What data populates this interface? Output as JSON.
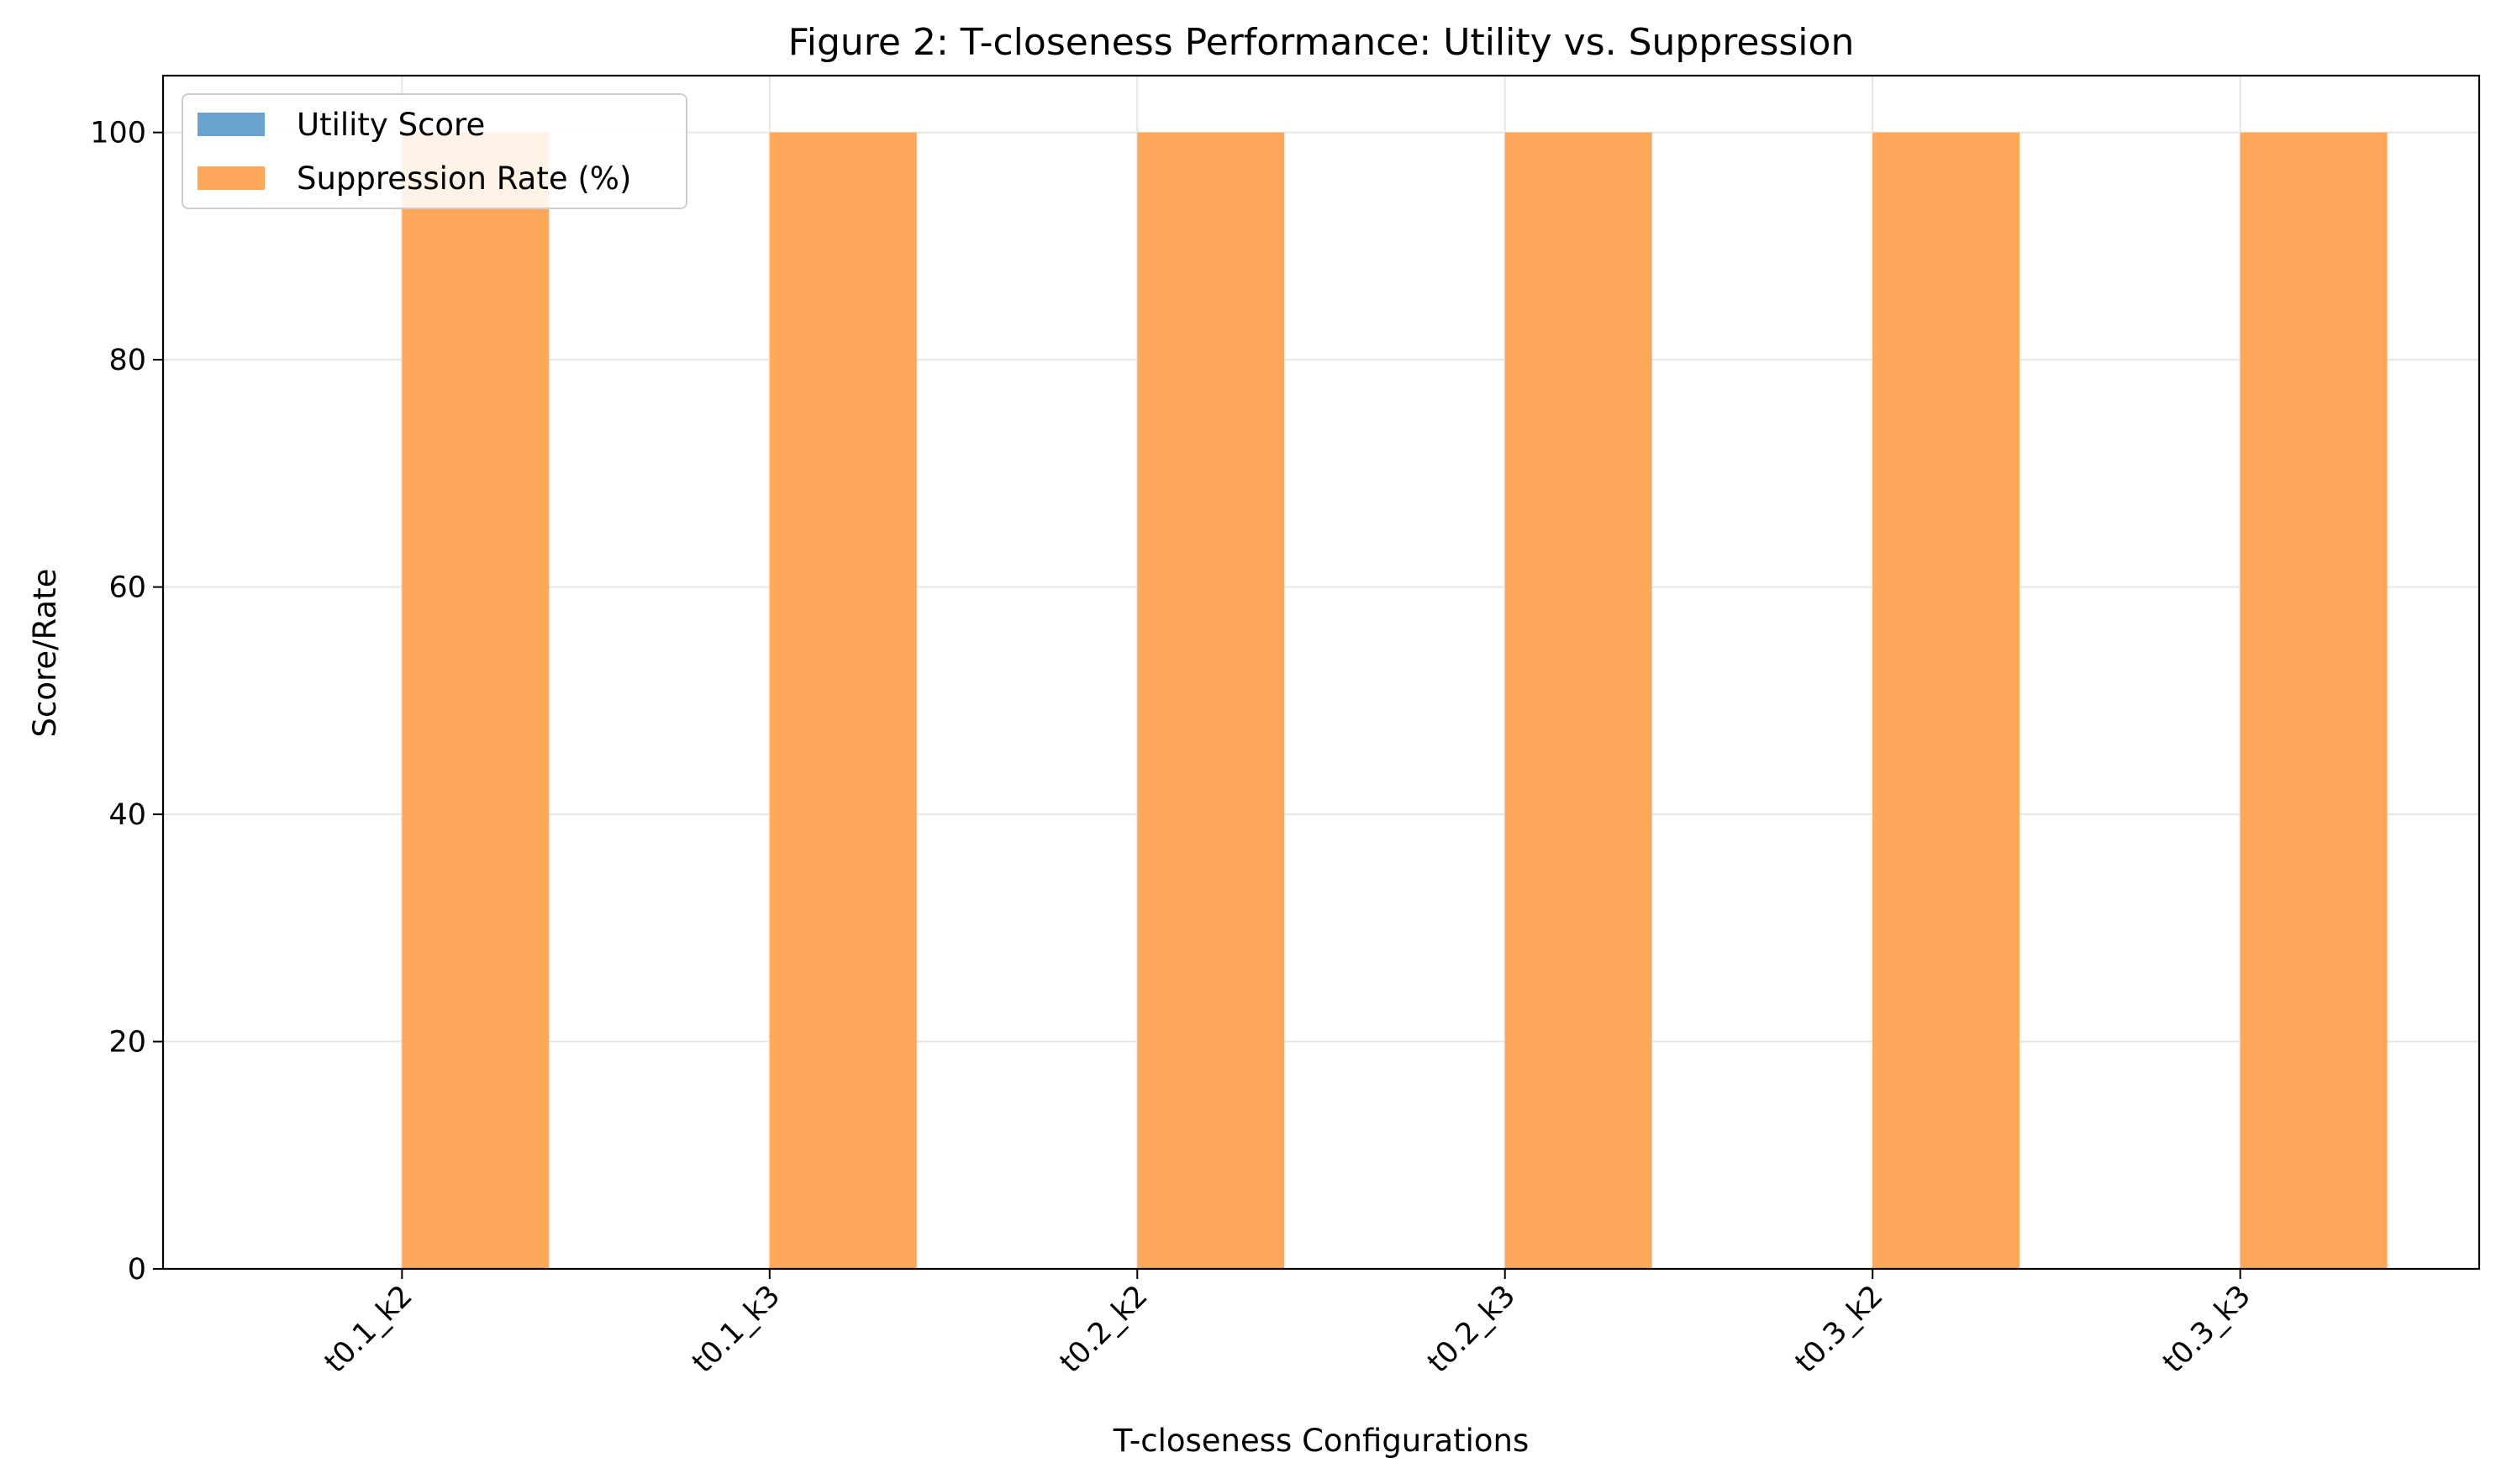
{
  "chart_data": {
    "type": "bar",
    "title": "Figure 2: T-closeness Performance: Utility vs. Suppression",
    "xlabel": "T-closeness Configurations",
    "ylabel": "Score/Rate",
    "categories": [
      "t0.1_k2",
      "t0.1_k3",
      "t0.2_k2",
      "t0.2_k3",
      "t0.3_k2",
      "t0.3_k3"
    ],
    "series": [
      {
        "name": "Utility Score",
        "values": [
          0,
          0,
          0,
          0,
          0,
          0
        ],
        "color": "#6aa3cd"
      },
      {
        "name": "Suppression Rate (%)",
        "values": [
          100,
          100,
          100,
          100,
          100,
          100
        ],
        "color": "#ffa75a"
      }
    ],
    "ylim": [
      0,
      105
    ],
    "yticks": [
      0,
      20,
      40,
      60,
      80,
      100
    ],
    "grid": true,
    "legend_position": "top-left"
  }
}
